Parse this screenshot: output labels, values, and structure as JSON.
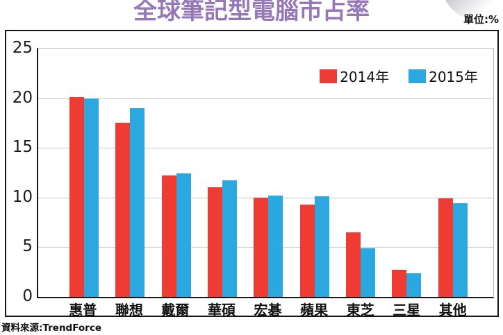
{
  "header": {
    "title": "全球筆記型電腦市占率",
    "title_color": "#9678b8",
    "unit_label": "單位:%"
  },
  "footer": {
    "source": "資料來源:TrendForce"
  },
  "colors": {
    "series_2014": "#ee3b34",
    "series_2015": "#2aa8df",
    "frame_border": "#161616",
    "gridline": "#c6c6c6"
  },
  "chart_data": {
    "type": "bar",
    "title": "全球筆記型電腦市占率",
    "unit": "%",
    "categories": [
      "惠普",
      "聯想",
      "戴爾",
      "華碩",
      "宏碁",
      "蘋果",
      "東芝",
      "三星",
      "其他"
    ],
    "series": [
      {
        "name": "2014年",
        "color": "#ee3b34",
        "values": [
          20.1,
          17.5,
          12.2,
          11.0,
          10.0,
          9.3,
          6.5,
          2.7,
          9.9
        ]
      },
      {
        "name": "2015年",
        "color": "#2aa8df",
        "values": [
          20.0,
          19.0,
          12.4,
          11.7,
          10.2,
          10.1,
          4.9,
          2.4,
          9.4
        ]
      }
    ],
    "ylim": [
      0,
      25
    ],
    "yticks": [
      0,
      5,
      10,
      15,
      20,
      25
    ],
    "grid": true,
    "legend_position": "top-right",
    "source": "TrendForce"
  }
}
